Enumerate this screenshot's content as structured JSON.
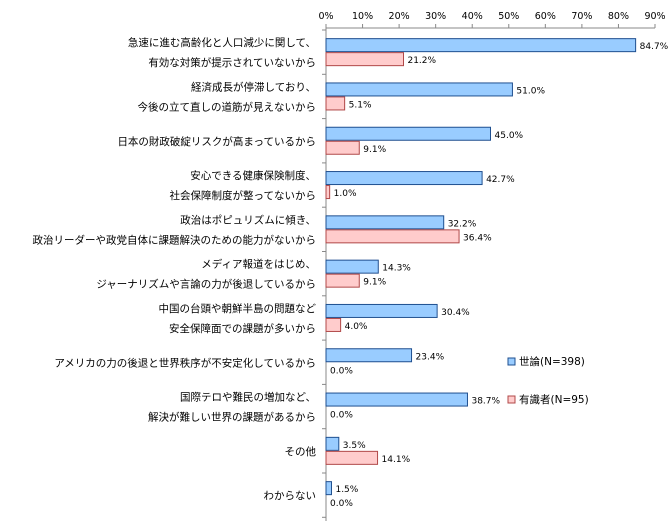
{
  "chart_data": {
    "type": "bar",
    "orientation": "horizontal",
    "xlim": [
      0,
      90
    ],
    "x_ticks": [
      "0%",
      "10%",
      "20%",
      "30%",
      "40%",
      "50%",
      "60%",
      "70%",
      "80%",
      "90%"
    ],
    "x_tick_values": [
      0,
      10,
      20,
      30,
      40,
      50,
      60,
      70,
      80,
      90
    ],
    "axis_position": "top",
    "grid": false,
    "legend_position": "right",
    "categories": [
      [
        "急速に進む高齢化と人口減少に関して、",
        "有効な対策が提示されていないから"
      ],
      [
        "経済成長が停滞しており、",
        "今後の立て直しの道筋が見えないから"
      ],
      [
        "日本の財政破綻リスクが高まっているから"
      ],
      [
        "安心できる健康保険制度、",
        "社会保障制度が整ってないから"
      ],
      [
        "政治はポピュリズムに傾き、",
        "政治リーダーや政党自体に課題解決のための能力がないから"
      ],
      [
        "メディア報道をはじめ、",
        "ジャーナリズムや言論の力が後退しているから"
      ],
      [
        "中国の台頭や朝鮮半島の問題など",
        "安全保障面での課題が多いから"
      ],
      [
        "アメリカの力の後退と世界秩序が不安定化しているから"
      ],
      [
        "国際テロや難民の増加など、",
        "解決が難しい世界の課題があるから"
      ],
      [
        "その他"
      ],
      [
        "わからない"
      ]
    ],
    "series": [
      {
        "name": "世論(N=398)",
        "color": "#99ccff",
        "values": [
          84.7,
          51.0,
          45.0,
          42.7,
          32.2,
          14.3,
          30.4,
          23.4,
          38.7,
          3.5,
          1.5
        ],
        "labels": [
          "84.7%",
          "51.0%",
          "45.0%",
          "42.7%",
          "32.2%",
          "14.3%",
          "30.4%",
          "23.4%",
          "38.7%",
          "3.5%",
          "1.5%"
        ]
      },
      {
        "name": "有識者(N=95)",
        "color": "#ffcccc",
        "values": [
          21.2,
          5.1,
          9.1,
          1.0,
          36.4,
          9.1,
          4.0,
          0.0,
          0.0,
          14.1,
          0.0
        ],
        "labels": [
          "21.2%",
          "5.1%",
          "9.1%",
          "1.0%",
          "36.4%",
          "9.1%",
          "4.0%",
          "0.0%",
          "0.0%",
          "14.1%",
          "0.0%"
        ]
      }
    ]
  }
}
